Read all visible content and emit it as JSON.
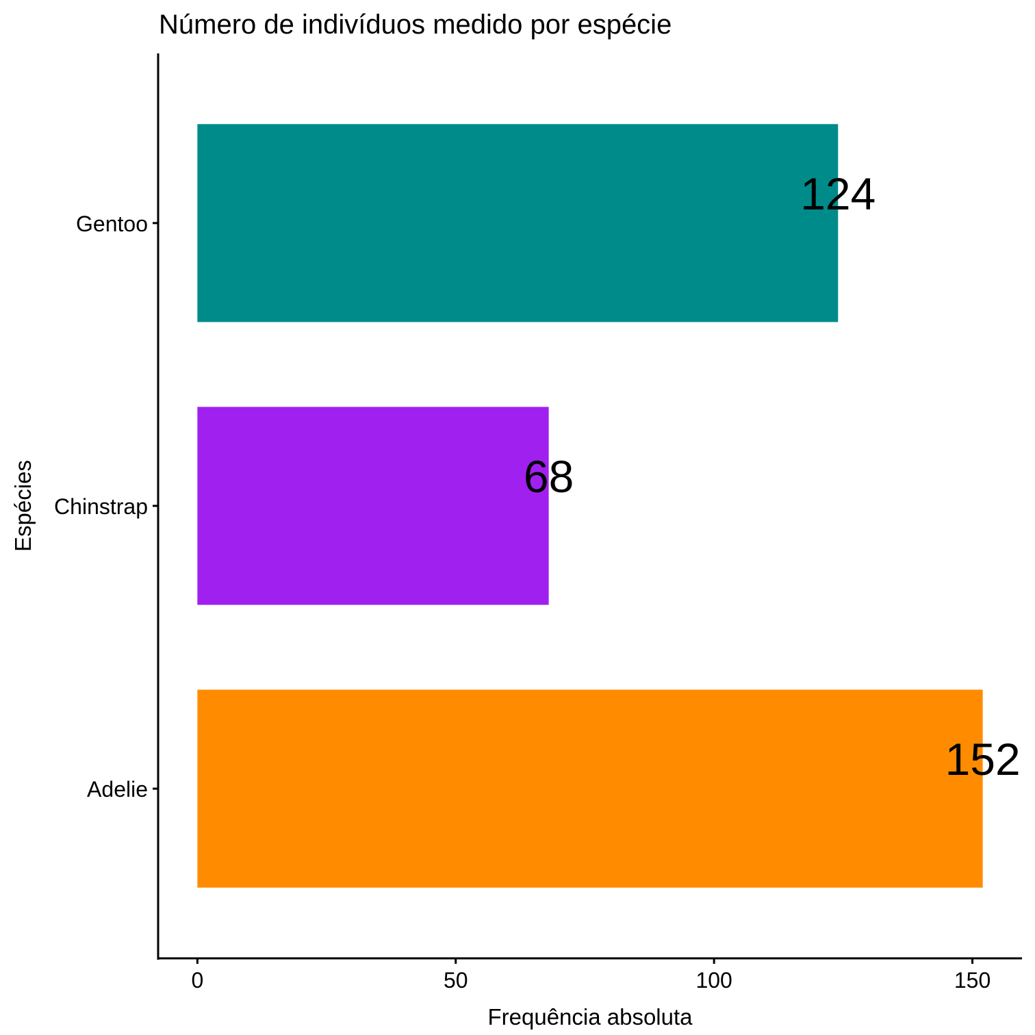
{
  "chart_data": {
    "type": "bar",
    "orientation": "horizontal",
    "title": "Número de indivíduos medido por espécie",
    "xlabel": "Frequência absoluta",
    "ylabel": "Espécies",
    "categories": [
      "Adelie",
      "Chinstrap",
      "Gentoo"
    ],
    "values": [
      152,
      68,
      124
    ],
    "colors": [
      "#FF8C00",
      "#A020F0",
      "#008B8B"
    ],
    "data_labels": [
      "152",
      "68",
      "124"
    ],
    "xlim": [
      -7.6,
      159.6
    ],
    "xticks": [
      0,
      50,
      100,
      150
    ],
    "xtick_labels": [
      "0",
      "50",
      "100",
      "150"
    ],
    "grid": false,
    "legend": "none"
  }
}
